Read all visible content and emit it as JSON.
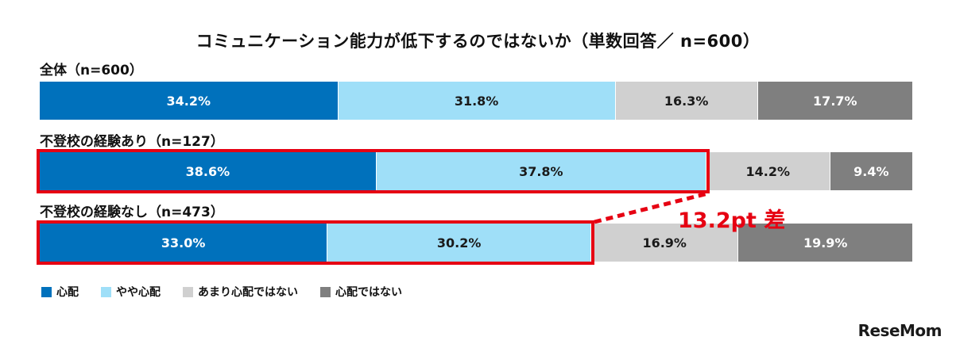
{
  "chart_data": {
    "type": "bar",
    "orientation": "horizontal-stacked-100",
    "title": "コミュニケーション能力が低下するのではないか（単数回答／ n=600）",
    "legend_placement": "bottom-left",
    "series": [
      {
        "name": "心配",
        "color": "#0071bc"
      },
      {
        "name": "やや心配",
        "color": "#9fdff8"
      },
      {
        "name": "あまり心配ではない",
        "color": "#d0d0d0"
      },
      {
        "name": "心配ではない",
        "color": "#7f7f7f"
      }
    ],
    "groups": [
      {
        "label": "全体（n=600）",
        "values": [
          34.2,
          31.8,
          16.3,
          17.7
        ],
        "value_labels": [
          "34.2%",
          "31.8%",
          "16.3%",
          "17.7%"
        ]
      },
      {
        "label": "不登校の経験あり（n=127）",
        "values": [
          38.6,
          37.8,
          14.2,
          9.4
        ],
        "value_labels": [
          "38.6%",
          "37.8%",
          "14.2%",
          "9.4%"
        ]
      },
      {
        "label": "不登校の経験なし（n=473）",
        "values": [
          33.0,
          30.2,
          16.9,
          19.9
        ],
        "value_labels": [
          "33.0%",
          "30.2%",
          "16.9%",
          "19.9%"
        ]
      }
    ],
    "annotation": {
      "text": "13.2pt 差",
      "color": "#e60012"
    }
  },
  "watermark": "ReseMom"
}
